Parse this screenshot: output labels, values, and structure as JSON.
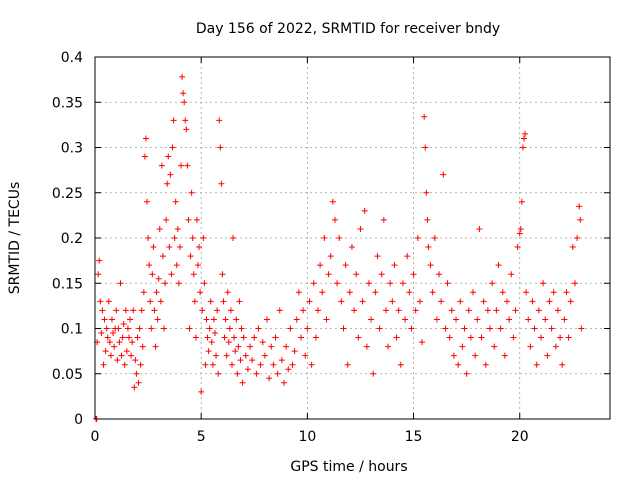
{
  "chart_data": {
    "type": "scatter",
    "title": "Day 156 of 2022, SRMTID for receiver bndy",
    "xlabel": "GPS time / hours",
    "ylabel": "SRMTID / TECUs",
    "xlim": [
      0,
      24.25
    ],
    "ylim": [
      0,
      0.4
    ],
    "xticks": [
      0,
      5,
      10,
      15,
      20
    ],
    "yticks": [
      0,
      0.05,
      0.1,
      0.15,
      0.2,
      0.25,
      0.3,
      0.35,
      0.4
    ],
    "xtick_labels": [
      "0",
      "5",
      "10",
      "15",
      "20"
    ],
    "ytick_labels": [
      "0",
      "0.05",
      "0.1",
      "0.15",
      "0.2",
      "0.25",
      "0.3",
      "0.35",
      "0.4"
    ],
    "grid": true,
    "marker": "+",
    "color": "#ff0000",
    "series": [
      {
        "name": "SRMTID",
        "points": [
          [
            0.05,
            0.0
          ],
          [
            0.08,
            0.0
          ],
          [
            0.1,
            0.085
          ],
          [
            0.15,
            0.16
          ],
          [
            0.2,
            0.175
          ],
          [
            0.25,
            0.13
          ],
          [
            0.3,
            0.095
          ],
          [
            0.35,
            0.12
          ],
          [
            0.4,
            0.06
          ],
          [
            0.45,
            0.11
          ],
          [
            0.5,
            0.075
          ],
          [
            0.55,
            0.1
          ],
          [
            0.6,
            0.09
          ],
          [
            0.65,
            0.13
          ],
          [
            0.7,
            0.085
          ],
          [
            0.75,
            0.07
          ],
          [
            0.8,
            0.11
          ],
          [
            0.85,
            0.095
          ],
          [
            0.9,
            0.08
          ],
          [
            0.95,
            0.1
          ],
          [
            1.0,
            0.12
          ],
          [
            1.05,
            0.065
          ],
          [
            1.1,
            0.1
          ],
          [
            1.15,
            0.085
          ],
          [
            1.2,
            0.15
          ],
          [
            1.25,
            0.07
          ],
          [
            1.3,
            0.09
          ],
          [
            1.35,
            0.105
          ],
          [
            1.4,
            0.06
          ],
          [
            1.45,
            0.12
          ],
          [
            1.5,
            0.075
          ],
          [
            1.55,
            0.1
          ],
          [
            1.6,
            0.09
          ],
          [
            1.65,
            0.11
          ],
          [
            1.7,
            0.07
          ],
          [
            1.75,
            0.085
          ],
          [
            1.8,
            0.12
          ],
          [
            1.85,
            0.035
          ],
          [
            1.9,
            0.065
          ],
          [
            1.95,
            0.05
          ],
          [
            2.0,
            0.09
          ],
          [
            2.05,
            0.04
          ],
          [
            2.1,
            0.1
          ],
          [
            2.15,
            0.06
          ],
          [
            2.2,
            0.12
          ],
          [
            2.25,
            0.08
          ],
          [
            2.3,
            0.14
          ],
          [
            2.35,
            0.29
          ],
          [
            2.4,
            0.31
          ],
          [
            2.45,
            0.24
          ],
          [
            2.5,
            0.2
          ],
          [
            2.55,
            0.17
          ],
          [
            2.6,
            0.13
          ],
          [
            2.65,
            0.1
          ],
          [
            2.7,
            0.16
          ],
          [
            2.75,
            0.19
          ],
          [
            2.8,
            0.12
          ],
          [
            2.85,
            0.08
          ],
          [
            2.9,
            0.14
          ],
          [
            2.95,
            0.11
          ],
          [
            3.0,
            0.155
          ],
          [
            3.05,
            0.21
          ],
          [
            3.1,
            0.13
          ],
          [
            3.15,
            0.28
          ],
          [
            3.2,
            0.18
          ],
          [
            3.25,
            0.1
          ],
          [
            3.3,
            0.15
          ],
          [
            3.35,
            0.22
          ],
          [
            3.4,
            0.26
          ],
          [
            3.45,
            0.29
          ],
          [
            3.5,
            0.19
          ],
          [
            3.55,
            0.27
          ],
          [
            3.6,
            0.16
          ],
          [
            3.65,
            0.3
          ],
          [
            3.7,
            0.33
          ],
          [
            3.75,
            0.2
          ],
          [
            3.8,
            0.24
          ],
          [
            3.85,
            0.17
          ],
          [
            3.9,
            0.21
          ],
          [
            3.95,
            0.15
          ],
          [
            4.0,
            0.19
          ],
          [
            4.05,
            0.28
          ],
          [
            4.1,
            0.378
          ],
          [
            4.15,
            0.36
          ],
          [
            4.2,
            0.35
          ],
          [
            4.25,
            0.33
          ],
          [
            4.3,
            0.32
          ],
          [
            4.35,
            0.28
          ],
          [
            4.4,
            0.22
          ],
          [
            4.45,
            0.1
          ],
          [
            4.5,
            0.18
          ],
          [
            4.55,
            0.25
          ],
          [
            4.6,
            0.2
          ],
          [
            4.65,
            0.16
          ],
          [
            4.7,
            0.13
          ],
          [
            4.75,
            0.09
          ],
          [
            4.8,
            0.22
          ],
          [
            4.85,
            0.17
          ],
          [
            4.9,
            0.19
          ],
          [
            4.95,
            0.14
          ],
          [
            5.0,
            0.03
          ],
          [
            5.05,
            0.12
          ],
          [
            5.1,
            0.2
          ],
          [
            5.15,
            0.15
          ],
          [
            5.2,
            0.06
          ],
          [
            5.25,
            0.11
          ],
          [
            5.3,
            0.09
          ],
          [
            5.35,
            0.075
          ],
          [
            5.4,
            0.1
          ],
          [
            5.45,
            0.13
          ],
          [
            5.5,
            0.085
          ],
          [
            5.55,
            0.06
          ],
          [
            5.6,
            0.11
          ],
          [
            5.65,
            0.095
          ],
          [
            5.7,
            0.07
          ],
          [
            5.75,
            0.12
          ],
          [
            5.8,
            0.05
          ],
          [
            5.85,
            0.33
          ],
          [
            5.9,
            0.3
          ],
          [
            5.95,
            0.26
          ],
          [
            6.0,
            0.16
          ],
          [
            6.05,
            0.13
          ],
          [
            6.1,
            0.09
          ],
          [
            6.15,
            0.11
          ],
          [
            6.2,
            0.07
          ],
          [
            6.25,
            0.14
          ],
          [
            6.3,
            0.085
          ],
          [
            6.35,
            0.1
          ],
          [
            6.4,
            0.12
          ],
          [
            6.45,
            0.06
          ],
          [
            6.5,
            0.2
          ],
          [
            6.55,
            0.09
          ],
          [
            6.6,
            0.075
          ],
          [
            6.65,
            0.11
          ],
          [
            6.7,
            0.05
          ],
          [
            6.75,
            0.08
          ],
          [
            6.8,
            0.13
          ],
          [
            6.85,
            0.065
          ],
          [
            6.9,
            0.1
          ],
          [
            6.95,
            0.04
          ],
          [
            7.0,
            0.09
          ],
          [
            7.1,
            0.07
          ],
          [
            7.2,
            0.055
          ],
          [
            7.3,
            0.08
          ],
          [
            7.4,
            0.065
          ],
          [
            7.5,
            0.09
          ],
          [
            7.6,
            0.05
          ],
          [
            7.7,
            0.1
          ],
          [
            7.8,
            0.06
          ],
          [
            7.9,
            0.085
          ],
          [
            8.0,
            0.07
          ],
          [
            8.1,
            0.11
          ],
          [
            8.2,
            0.045
          ],
          [
            8.3,
            0.08
          ],
          [
            8.4,
            0.06
          ],
          [
            8.5,
            0.09
          ],
          [
            8.6,
            0.05
          ],
          [
            8.7,
            0.12
          ],
          [
            8.8,
            0.065
          ],
          [
            8.9,
            0.04
          ],
          [
            9.0,
            0.08
          ],
          [
            9.1,
            0.055
          ],
          [
            9.2,
            0.1
          ],
          [
            9.3,
            0.06
          ],
          [
            9.4,
            0.075
          ],
          [
            9.5,
            0.11
          ],
          [
            9.6,
            0.14
          ],
          [
            9.7,
            0.09
          ],
          [
            9.8,
            0.12
          ],
          [
            9.9,
            0.07
          ],
          [
            10.0,
            0.1
          ],
          [
            10.1,
            0.13
          ],
          [
            10.2,
            0.06
          ],
          [
            10.3,
            0.15
          ],
          [
            10.4,
            0.09
          ],
          [
            10.5,
            0.12
          ],
          [
            10.6,
            0.17
          ],
          [
            10.7,
            0.14
          ],
          [
            10.8,
            0.2
          ],
          [
            10.9,
            0.11
          ],
          [
            11.0,
            0.16
          ],
          [
            11.1,
            0.18
          ],
          [
            11.2,
            0.24
          ],
          [
            11.3,
            0.22
          ],
          [
            11.4,
            0.15
          ],
          [
            11.5,
            0.2
          ],
          [
            11.6,
            0.13
          ],
          [
            11.7,
            0.1
          ],
          [
            11.8,
            0.17
          ],
          [
            11.9,
            0.06
          ],
          [
            12.0,
            0.14
          ],
          [
            12.1,
            0.19
          ],
          [
            12.2,
            0.12
          ],
          [
            12.3,
            0.16
          ],
          [
            12.4,
            0.09
          ],
          [
            12.5,
            0.21
          ],
          [
            12.6,
            0.13
          ],
          [
            12.7,
            0.23
          ],
          [
            12.8,
            0.08
          ],
          [
            12.9,
            0.15
          ],
          [
            13.0,
            0.11
          ],
          [
            13.1,
            0.05
          ],
          [
            13.2,
            0.14
          ],
          [
            13.3,
            0.18
          ],
          [
            13.4,
            0.1
          ],
          [
            13.5,
            0.16
          ],
          [
            13.6,
            0.22
          ],
          [
            13.7,
            0.12
          ],
          [
            13.8,
            0.08
          ],
          [
            13.9,
            0.15
          ],
          [
            14.0,
            0.13
          ],
          [
            14.1,
            0.17
          ],
          [
            14.2,
            0.09
          ],
          [
            14.3,
            0.12
          ],
          [
            14.4,
            0.06
          ],
          [
            14.5,
            0.15
          ],
          [
            14.6,
            0.11
          ],
          [
            14.7,
            0.18
          ],
          [
            14.8,
            0.14
          ],
          [
            14.9,
            0.1
          ],
          [
            15.0,
            0.16
          ],
          [
            15.1,
            0.12
          ],
          [
            15.2,
            0.2
          ],
          [
            15.3,
            0.13
          ],
          [
            15.4,
            0.085
          ],
          [
            15.5,
            0.334
          ],
          [
            15.55,
            0.3
          ],
          [
            15.6,
            0.25
          ],
          [
            15.65,
            0.22
          ],
          [
            15.7,
            0.19
          ],
          [
            15.8,
            0.17
          ],
          [
            15.9,
            0.14
          ],
          [
            16.0,
            0.2
          ],
          [
            16.1,
            0.11
          ],
          [
            16.2,
            0.16
          ],
          [
            16.3,
            0.13
          ],
          [
            16.4,
            0.27
          ],
          [
            16.5,
            0.1
          ],
          [
            16.6,
            0.15
          ],
          [
            16.7,
            0.09
          ],
          [
            16.8,
            0.12
          ],
          [
            16.9,
            0.07
          ],
          [
            17.0,
            0.11
          ],
          [
            17.1,
            0.06
          ],
          [
            17.2,
            0.13
          ],
          [
            17.3,
            0.08
          ],
          [
            17.4,
            0.1
          ],
          [
            17.5,
            0.05
          ],
          [
            17.6,
            0.12
          ],
          [
            17.7,
            0.09
          ],
          [
            17.8,
            0.14
          ],
          [
            17.9,
            0.07
          ],
          [
            18.0,
            0.11
          ],
          [
            18.1,
            0.21
          ],
          [
            18.2,
            0.09
          ],
          [
            18.3,
            0.13
          ],
          [
            18.4,
            0.06
          ],
          [
            18.5,
            0.12
          ],
          [
            18.6,
            0.1
          ],
          [
            18.7,
            0.15
          ],
          [
            18.8,
            0.08
          ],
          [
            18.9,
            0.12
          ],
          [
            19.0,
            0.17
          ],
          [
            19.1,
            0.1
          ],
          [
            19.2,
            0.14
          ],
          [
            19.3,
            0.07
          ],
          [
            19.4,
            0.13
          ],
          [
            19.5,
            0.11
          ],
          [
            19.6,
            0.16
          ],
          [
            19.7,
            0.09
          ],
          [
            19.8,
            0.12
          ],
          [
            19.9,
            0.19
          ],
          [
            20.0,
            0.205
          ],
          [
            20.05,
            0.21
          ],
          [
            20.1,
            0.24
          ],
          [
            20.15,
            0.3
          ],
          [
            20.2,
            0.31
          ],
          [
            20.25,
            0.315
          ],
          [
            20.3,
            0.14
          ],
          [
            20.4,
            0.11
          ],
          [
            20.5,
            0.08
          ],
          [
            20.6,
            0.13
          ],
          [
            20.7,
            0.1
          ],
          [
            20.8,
            0.06
          ],
          [
            20.9,
            0.12
          ],
          [
            21.0,
            0.09
          ],
          [
            21.1,
            0.15
          ],
          [
            21.2,
            0.11
          ],
          [
            21.3,
            0.07
          ],
          [
            21.4,
            0.13
          ],
          [
            21.5,
            0.1
          ],
          [
            21.6,
            0.14
          ],
          [
            21.7,
            0.08
          ],
          [
            21.8,
            0.12
          ],
          [
            21.9,
            0.09
          ],
          [
            22.0,
            0.06
          ],
          [
            22.1,
            0.11
          ],
          [
            22.2,
            0.14
          ],
          [
            22.3,
            0.09
          ],
          [
            22.4,
            0.13
          ],
          [
            22.5,
            0.19
          ],
          [
            22.6,
            0.15
          ],
          [
            22.7,
            0.2
          ],
          [
            22.8,
            0.235
          ],
          [
            22.85,
            0.22
          ],
          [
            22.9,
            0.1
          ]
        ]
      }
    ]
  }
}
